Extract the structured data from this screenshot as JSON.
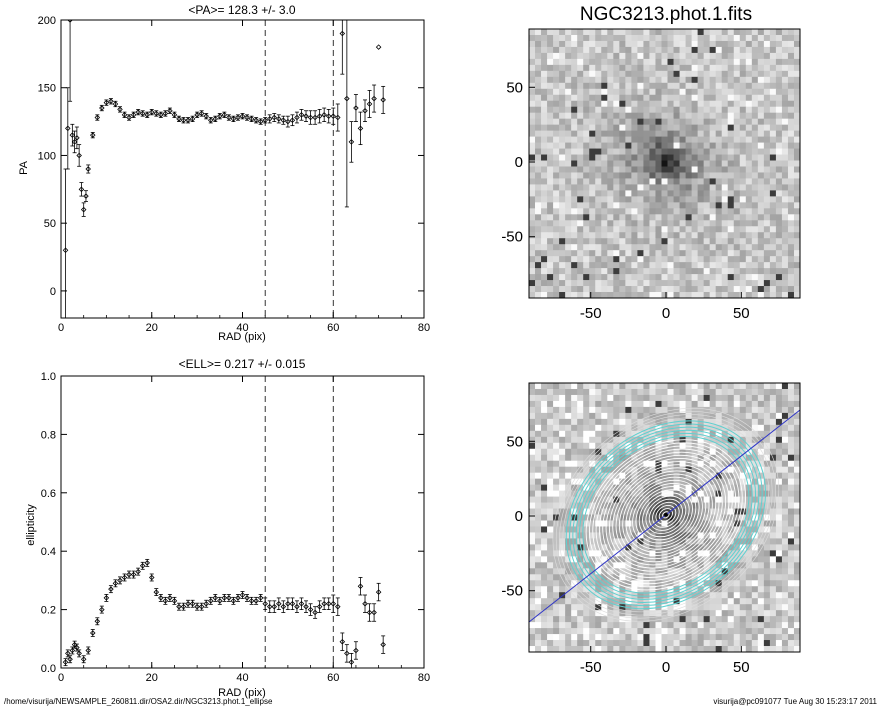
{
  "charts": {
    "pa": {
      "title": "<PA>= 128.3 +/-   3.0",
      "xlabel": "RAD (pix)",
      "ylabel": "PA",
      "xlim": [
        0,
        80
      ],
      "ylim": [
        -20,
        200
      ],
      "xticks": [
        "0",
        "20",
        "40",
        "60",
        "80"
      ],
      "yticks": [
        "0",
        "50",
        "100",
        "150",
        "200"
      ]
    },
    "ell": {
      "title": "<ELL>= 0.217 +/-  0.015",
      "xlabel": "RAD (pix)",
      "ylabel": "ellipticity",
      "xlim": [
        0,
        80
      ],
      "ylim": [
        0.0,
        1.0
      ],
      "xticks": [
        "0",
        "20",
        "40",
        "60",
        "80"
      ],
      "yticks": [
        "0.0",
        "0.2",
        "0.4",
        "0.6",
        "0.8",
        "1.0"
      ]
    },
    "img1": {
      "title": "NGC3213.phot.1.fits",
      "xticks": [
        "-50",
        "0",
        "50"
      ],
      "yticks": [
        "50",
        "0",
        "-50"
      ]
    },
    "img2": {
      "xticks": [
        "-50",
        "0",
        "50"
      ],
      "yticks": [
        "50",
        "0",
        "-50"
      ]
    }
  },
  "chart_data": [
    {
      "type": "scatter",
      "name": "pa-profile",
      "title": "<PA>= 128.3 +/-   3.0",
      "xlabel": "RAD (pix)",
      "ylabel": "PA",
      "xlim": [
        0,
        80
      ],
      "ylim": [
        -20,
        200
      ],
      "vlines": [
        45,
        60
      ],
      "x": [
        1,
        1.5,
        2,
        2.5,
        3,
        3.5,
        4,
        4.5,
        5,
        5.5,
        6,
        7,
        8,
        9,
        10,
        11,
        12,
        13,
        14,
        15,
        16,
        17,
        18,
        19,
        20,
        21,
        22,
        23,
        24,
        25,
        26,
        27,
        28,
        29,
        30,
        31,
        32,
        33,
        34,
        35,
        36,
        37,
        38,
        39,
        40,
        41,
        42,
        43,
        44,
        45,
        46,
        47,
        48,
        49,
        50,
        51,
        52,
        53,
        54,
        55,
        56,
        57,
        58,
        59,
        60,
        61,
        62,
        63,
        64,
        65,
        66,
        67,
        68,
        69,
        70,
        71
      ],
      "y": [
        30,
        120,
        200,
        115,
        110,
        113,
        100,
        75,
        60,
        70,
        90,
        115,
        128,
        135,
        139,
        140,
        138,
        134,
        130,
        128,
        130,
        132,
        131,
        130,
        132,
        131,
        130,
        131,
        133,
        130,
        127,
        126,
        126,
        127,
        130,
        131,
        129,
        126,
        127,
        129,
        130,
        128,
        127,
        128,
        129,
        128,
        127,
        126,
        125,
        126,
        127,
        128,
        127,
        126,
        125,
        126,
        128,
        130,
        129,
        128,
        128,
        129,
        130,
        129,
        129,
        128,
        190,
        142,
        110,
        135,
        120,
        133,
        138,
        142,
        180,
        141
      ],
      "yerr": [
        60,
        30,
        60,
        8,
        8,
        8,
        8,
        5,
        5,
        4,
        3,
        2,
        2,
        2,
        2,
        2,
        2,
        2,
        2,
        2,
        2,
        2,
        2,
        2,
        2,
        2,
        2,
        2,
        2,
        2,
        2,
        2,
        2,
        2,
        2,
        2,
        2,
        2,
        2,
        2,
        2,
        2,
        2,
        2,
        2,
        2,
        2,
        2,
        2,
        2,
        3,
        3,
        3,
        3,
        4,
        4,
        4,
        4,
        4,
        5,
        5,
        5,
        5,
        5,
        6,
        10,
        30,
        80,
        15,
        10,
        12,
        8,
        10,
        10,
        0,
        10
      ]
    },
    {
      "type": "scatter",
      "name": "ellipticity-profile",
      "title": "<ELL>= 0.217 +/-  0.015",
      "xlabel": "RAD (pix)",
      "ylabel": "ellipticity",
      "xlim": [
        0,
        80
      ],
      "ylim": [
        0.0,
        1.0
      ],
      "vlines": [
        45,
        60
      ],
      "x": [
        1,
        1.5,
        2,
        2.5,
        3,
        3.5,
        4,
        5,
        6,
        7,
        8,
        9,
        10,
        11,
        12,
        13,
        14,
        15,
        16,
        17,
        18,
        19,
        20,
        21,
        22,
        23,
        24,
        25,
        26,
        27,
        28,
        29,
        30,
        31,
        32,
        33,
        34,
        35,
        36,
        37,
        38,
        39,
        40,
        41,
        42,
        43,
        44,
        45,
        46,
        47,
        48,
        49,
        50,
        51,
        52,
        53,
        54,
        55,
        56,
        57,
        58,
        59,
        60,
        61,
        62,
        63,
        64,
        65,
        66,
        67,
        68,
        69,
        70,
        71
      ],
      "y": [
        0.02,
        0.05,
        0.03,
        0.06,
        0.08,
        0.07,
        0.05,
        0.03,
        0.06,
        0.12,
        0.16,
        0.2,
        0.24,
        0.27,
        0.29,
        0.3,
        0.31,
        0.32,
        0.32,
        0.33,
        0.35,
        0.36,
        0.31,
        0.26,
        0.24,
        0.23,
        0.24,
        0.23,
        0.21,
        0.21,
        0.22,
        0.22,
        0.21,
        0.21,
        0.22,
        0.23,
        0.24,
        0.23,
        0.24,
        0.24,
        0.23,
        0.24,
        0.25,
        0.24,
        0.23,
        0.23,
        0.24,
        0.22,
        0.21,
        0.21,
        0.22,
        0.21,
        0.22,
        0.22,
        0.21,
        0.22,
        0.21,
        0.2,
        0.19,
        0.21,
        0.22,
        0.22,
        0.22,
        0.21,
        0.09,
        0.05,
        0.02,
        0.06,
        0.28,
        0.22,
        0.19,
        0.19,
        0.26,
        0.08
      ]
    }
  ],
  "footer": {
    "path": "/home/visurija/NEWSAMPLE_260811.dir/OSA2.dir/NGC3213.phot.1_ellipse",
    "stamp": "visurija@pc091077  Tue Aug 30 15:23:17 2011"
  }
}
